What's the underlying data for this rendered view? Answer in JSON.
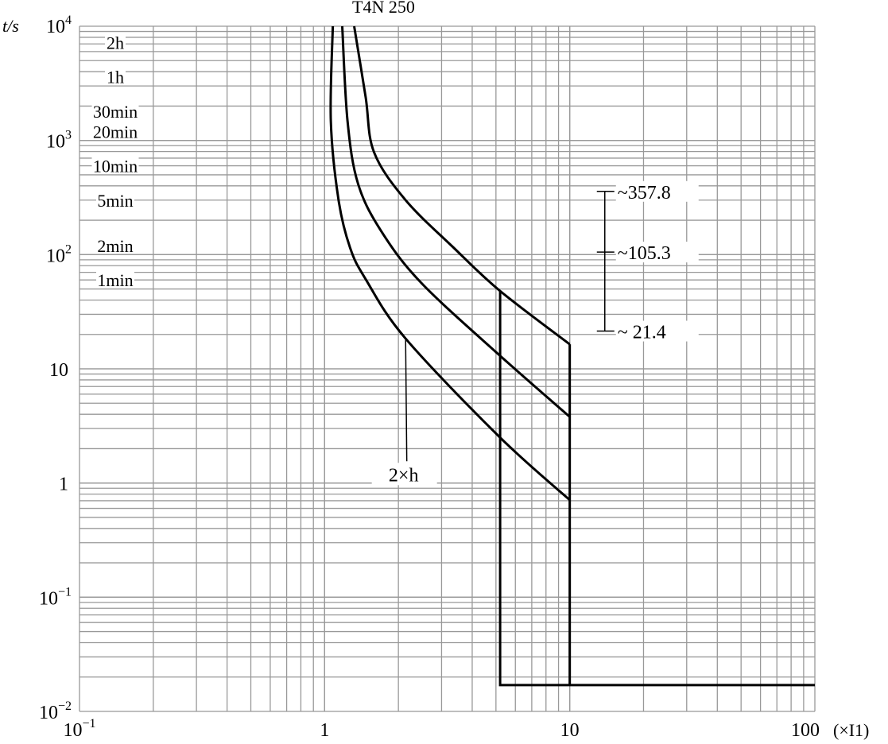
{
  "chart_data": {
    "type": "line",
    "title": "T4N 250",
    "xlabel": "(×I1)",
    "ylabel": "t/s",
    "xscale": "log",
    "yscale": "log",
    "xlim": [
      0.1,
      100
    ],
    "ylim": [
      0.01,
      10000
    ],
    "grid": true,
    "x_ticks": [
      {
        "v": 0.1,
        "base": "10",
        "exp": "−1"
      },
      {
        "v": 1,
        "base": "1",
        "exp": ""
      },
      {
        "v": 10,
        "base": "10",
        "exp": ""
      },
      {
        "v": 100,
        "base": "100",
        "exp": ""
      }
    ],
    "y_ticks": [
      {
        "v": 10000,
        "base": "10",
        "exp": "4"
      },
      {
        "v": 1000,
        "base": "10",
        "exp": "3"
      },
      {
        "v": 100,
        "base": "10",
        "exp": "2"
      },
      {
        "v": 10,
        "base": "10",
        "exp": ""
      },
      {
        "v": 1,
        "base": "1",
        "exp": ""
      },
      {
        "v": 0.1,
        "base": "10",
        "exp": "−1"
      },
      {
        "v": 0.01,
        "base": "10",
        "exp": "−2"
      }
    ],
    "time_labels": [
      {
        "label": "2h",
        "t": 7200
      },
      {
        "label": "1h",
        "t": 3600
      },
      {
        "label": "30min",
        "t": 1800
      },
      {
        "label": "20min",
        "t": 1200
      },
      {
        "label": "10min",
        "t": 600
      },
      {
        "label": "5min",
        "t": 300
      },
      {
        "label": "2min",
        "t": 120
      },
      {
        "label": "1min",
        "t": 60
      }
    ],
    "series": [
      {
        "name": "curve-low",
        "points": [
          [
            1.08,
            10000
          ],
          [
            1.06,
            1480
          ],
          [
            1.14,
            300
          ],
          [
            1.27,
            115
          ],
          [
            1.47,
            61
          ],
          [
            2.14,
            18.4
          ],
          [
            5.2,
            2.5
          ],
          [
            10,
            0.71
          ]
        ]
      },
      {
        "name": "curve-mid",
        "points": [
          [
            1.18,
            10000
          ],
          [
            1.24,
            1480
          ],
          [
            1.37,
            415
          ],
          [
            1.71,
            158
          ],
          [
            2.49,
            56
          ],
          [
            5.2,
            13
          ],
          [
            10,
            3.8
          ]
        ]
      },
      {
        "name": "curve-high",
        "points": [
          [
            1.32,
            10000
          ],
          [
            1.47,
            2400
          ],
          [
            1.59,
            790
          ],
          [
            2.14,
            300
          ],
          [
            3.36,
            115
          ],
          [
            5.2,
            48
          ],
          [
            10,
            16.4
          ]
        ]
      },
      {
        "name": "instantaneous-trip",
        "points": [
          [
            5.2,
            48
          ],
          [
            5.2,
            0.017
          ],
          [
            100,
            0.017
          ]
        ]
      },
      {
        "name": "cutoff-at-10",
        "points": [
          [
            10,
            16.4
          ],
          [
            10,
            0.017
          ]
        ]
      }
    ],
    "range_marker": {
      "x": 13.9,
      "ticks": [
        {
          "t": 357.8,
          "label": "~357.8"
        },
        {
          "t": 105.3,
          "label": "~105.3"
        },
        {
          "t": 21.4,
          "label": "~ 21.4"
        }
      ]
    },
    "annotations": [
      {
        "text": "2×h",
        "at": [
          2.1,
          1.2
        ],
        "points_to": [
          2.14,
          18.4
        ]
      }
    ]
  }
}
